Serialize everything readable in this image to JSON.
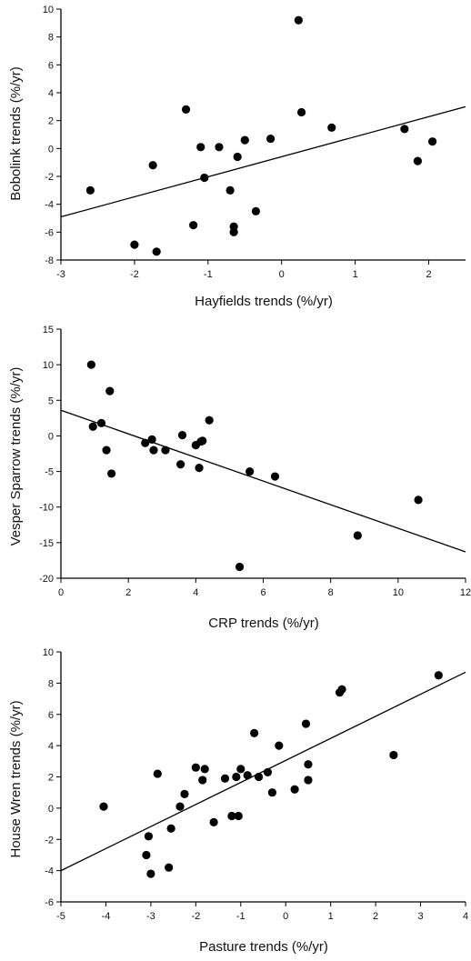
{
  "chart_data": [
    {
      "type": "scatter",
      "xlabel": "Hayfields trends (%/yr)",
      "ylabel": "Bobolink trends (%/yr)",
      "xlim": [
        -3,
        2.5
      ],
      "ylim": [
        -8,
        10
      ],
      "xticks": [
        -3,
        -2,
        -1,
        0,
        1,
        2
      ],
      "yticks": [
        -8,
        -6,
        -4,
        -2,
        0,
        2,
        4,
        6,
        8,
        10
      ],
      "trendline": {
        "x": [
          -3,
          2.5
        ],
        "y": [
          -4.9,
          3.0
        ]
      },
      "points": {
        "x": [
          -2.6,
          -2.0,
          -1.75,
          -1.7,
          -1.3,
          -1.2,
          -1.1,
          -1.05,
          -0.85,
          -0.7,
          -0.65,
          -0.65,
          -0.6,
          -0.5,
          -0.35,
          -0.15,
          0.23,
          0.27,
          0.68,
          1.67,
          1.85,
          2.05
        ],
        "y": [
          -3.0,
          -6.9,
          -1.2,
          -7.4,
          2.8,
          -5.5,
          0.1,
          -2.1,
          0.1,
          -3.0,
          -5.6,
          -6.0,
          -0.6,
          0.6,
          -4.5,
          0.7,
          9.2,
          2.6,
          1.5,
          1.4,
          -0.9,
          0.5
        ]
      }
    },
    {
      "type": "scatter",
      "xlabel": "CRP trends (%/yr)",
      "ylabel": "Vesper Sparrow trends (%/yr)",
      "xlim": [
        0,
        12
      ],
      "ylim": [
        -20,
        15
      ],
      "xticks": [
        0,
        2,
        4,
        6,
        8,
        10,
        12
      ],
      "yticks": [
        -20,
        -15,
        -10,
        -5,
        0,
        5,
        10,
        15
      ],
      "trendline": {
        "x": [
          0,
          12
        ],
        "y": [
          3.6,
          -16.3
        ]
      },
      "points": {
        "x": [
          0.9,
          0.95,
          1.2,
          1.35,
          1.45,
          1.5,
          2.5,
          2.7,
          2.75,
          3.1,
          3.55,
          3.6,
          4.0,
          4.1,
          4.15,
          4.2,
          4.4,
          5.3,
          5.6,
          6.35,
          8.8,
          10.6
        ],
        "y": [
          10.0,
          1.3,
          1.8,
          -2.0,
          6.3,
          -5.3,
          -1.0,
          -0.5,
          -2.0,
          -2.0,
          -4.0,
          0.1,
          -1.3,
          -4.5,
          -0.8,
          -0.7,
          2.2,
          -18.4,
          -5.0,
          -5.7,
          -14.0,
          -9.0
        ]
      }
    },
    {
      "type": "scatter",
      "xlabel": "Pasture trends (%/yr)",
      "ylabel": "House Wren trends (%/yr)",
      "xlim": [
        -5,
        4
      ],
      "ylim": [
        -6,
        10
      ],
      "xticks": [
        -5,
        -4,
        -3,
        -2,
        -1,
        0,
        1,
        2,
        3,
        4
      ],
      "yticks": [
        -6,
        -4,
        -2,
        0,
        2,
        4,
        6,
        8,
        10
      ],
      "trendline": {
        "x": [
          -5,
          4
        ],
        "y": [
          -4.0,
          8.7
        ]
      },
      "points": {
        "x": [
          -4.05,
          -3.1,
          -3.05,
          -3.0,
          -2.85,
          -2.6,
          -2.55,
          -2.35,
          -2.25,
          -2.0,
          -1.85,
          -1.8,
          -1.6,
          -1.35,
          -1.2,
          -1.1,
          -1.05,
          -1.0,
          -0.85,
          -0.7,
          -0.6,
          -0.4,
          -0.3,
          -0.15,
          0.2,
          0.45,
          0.5,
          0.5,
          1.2,
          1.25,
          2.4,
          3.4
        ],
        "y": [
          0.1,
          -3.0,
          -1.8,
          -4.2,
          2.2,
          -3.8,
          -1.3,
          0.1,
          0.9,
          2.6,
          1.8,
          2.5,
          -0.9,
          1.9,
          -0.5,
          2.0,
          -0.5,
          2.5,
          2.1,
          4.8,
          2.0,
          2.3,
          1.0,
          4.0,
          1.2,
          5.4,
          2.8,
          1.8,
          7.4,
          7.6,
          3.4,
          8.5
        ]
      }
    }
  ]
}
